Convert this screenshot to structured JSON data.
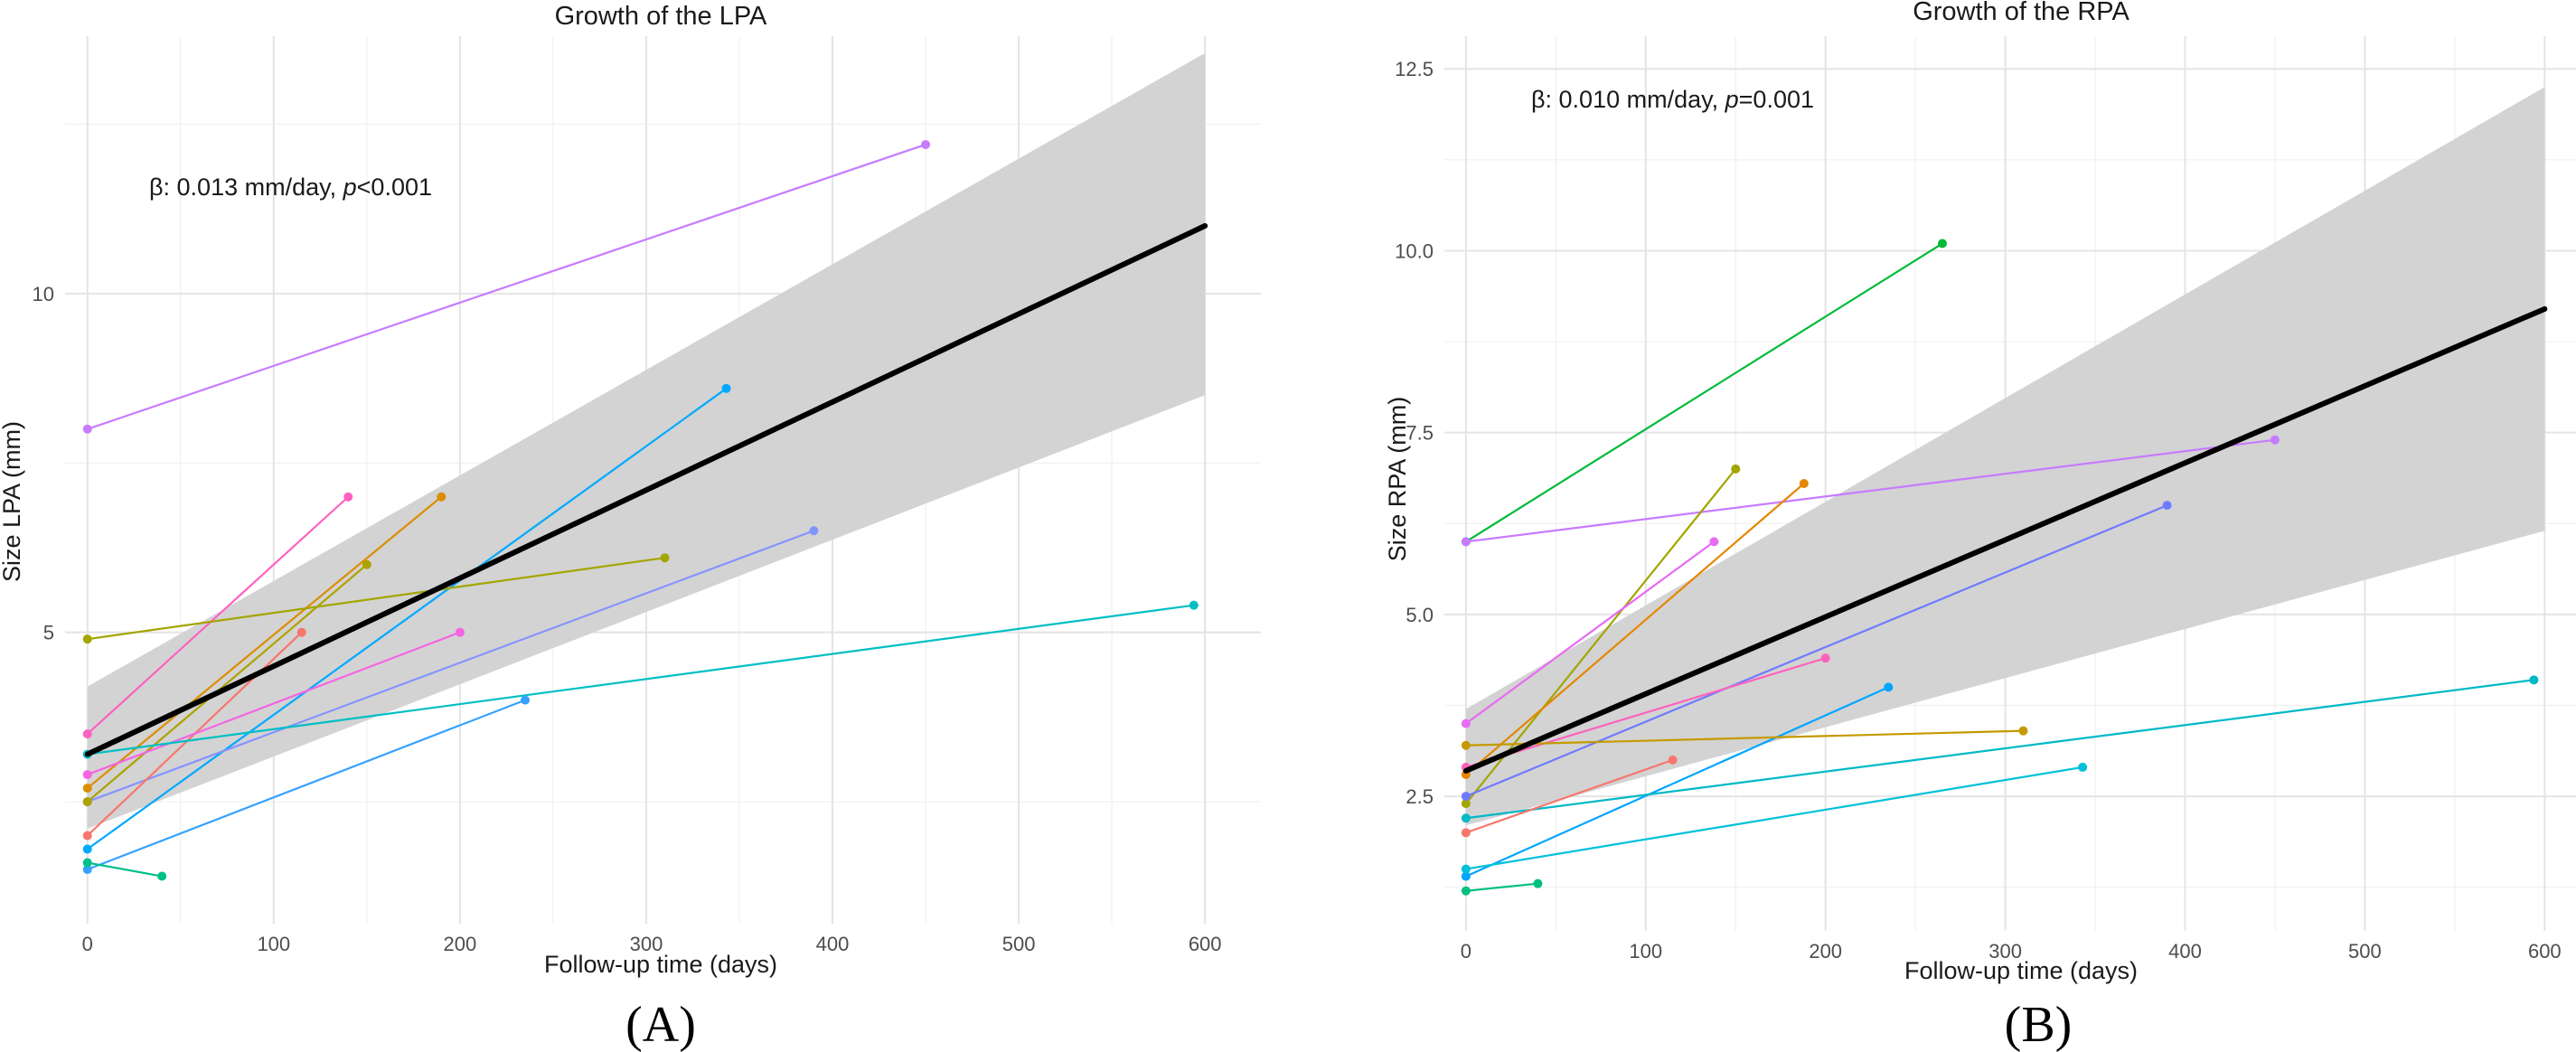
{
  "chart_data": [
    {
      "type": "line",
      "panel_label": "(A)",
      "title": "Growth of the LPA",
      "xlabel": "Follow-up time (days)",
      "ylabel": "Size LPA (mm)",
      "annotation": {
        "beta": "β: 0.013 mm/day, ",
        "p_symbol": "p",
        "p_value": "<0.001"
      },
      "xlim": [
        -12,
        630
      ],
      "ylim": [
        0.7,
        13.8
      ],
      "x_ticks": [
        0,
        100,
        200,
        300,
        400,
        500,
        600
      ],
      "y_ticks": [
        5,
        10
      ],
      "grid": true,
      "regression": {
        "x": [
          0,
          600
        ],
        "y": [
          3.2,
          11.0
        ],
        "band_lower": [
          2.1,
          8.5
        ],
        "band_upper": [
          4.2,
          13.55
        ]
      },
      "patients": [
        {
          "color": "#C77CFF",
          "x": [
            0,
            450
          ],
          "y": [
            8.0,
            12.2
          ]
        },
        {
          "color": "#FF61C3",
          "x": [
            0,
            140
          ],
          "y": [
            3.5,
            7.0
          ]
        },
        {
          "color": "#DB8E00",
          "x": [
            0,
            190
          ],
          "y": [
            2.7,
            7.0
          ]
        },
        {
          "color": "#00A9FF",
          "x": [
            0,
            343
          ],
          "y": [
            1.8,
            8.6
          ]
        },
        {
          "color": "#8494FF",
          "x": [
            0,
            390
          ],
          "y": [
            2.5,
            6.5
          ]
        },
        {
          "color": "#AEA200",
          "x": [
            0,
            150
          ],
          "y": [
            2.5,
            6.0
          ]
        },
        {
          "color": "#A3A500",
          "x": [
            0,
            310
          ],
          "y": [
            4.9,
            6.1
          ]
        },
        {
          "color": "#F8766D",
          "x": [
            0,
            115
          ],
          "y": [
            2.0,
            5.0
          ]
        },
        {
          "color": "#F564E3",
          "x": [
            0,
            200
          ],
          "y": [
            2.9,
            5.0
          ]
        },
        {
          "color": "#00BFC4",
          "x": [
            0,
            594
          ],
          "y": [
            3.2,
            5.4
          ]
        },
        {
          "color": "#35A2FF",
          "x": [
            0,
            235
          ],
          "y": [
            1.5,
            4.0
          ]
        },
        {
          "color": "#00C08B",
          "x": [
            0,
            40
          ],
          "y": [
            1.6,
            1.4
          ]
        }
      ]
    },
    {
      "type": "line",
      "panel_label": "(B)",
      "title": "Growth of the RPA",
      "xlabel": "Follow-up time (days)",
      "ylabel": "Size RPA (mm)",
      "annotation": {
        "beta": "β: 0.010 mm/day, ",
        "p_symbol": "p",
        "p_value": "=0.001"
      },
      "xlim": [
        -12,
        630
      ],
      "ylim": [
        0.65,
        12.95
      ],
      "x_ticks": [
        0,
        100,
        200,
        300,
        400,
        500,
        600
      ],
      "y_ticks": [
        2.5,
        5.0,
        7.5,
        10.0,
        12.5
      ],
      "grid": true,
      "regression": {
        "x": [
          0,
          600
        ],
        "y": [
          2.85,
          9.2
        ],
        "band_lower": [
          2.1,
          6.15
        ],
        "band_upper": [
          3.7,
          12.25
        ]
      },
      "patients": [
        {
          "color": "#00BA38",
          "x": [
            0,
            265
          ],
          "y": [
            6.0,
            10.1
          ]
        },
        {
          "color": "#C77CFF",
          "x": [
            0,
            450
          ],
          "y": [
            6.0,
            7.4
          ]
        },
        {
          "color": "#A3A500",
          "x": [
            0,
            150
          ],
          "y": [
            2.4,
            7.0
          ]
        },
        {
          "color": "#E58700",
          "x": [
            0,
            188
          ],
          "y": [
            2.8,
            6.8
          ]
        },
        {
          "color": "#6F7BFF",
          "x": [
            0,
            390
          ],
          "y": [
            2.5,
            6.5
          ]
        },
        {
          "color": "#E76BF3",
          "x": [
            0,
            138
          ],
          "y": [
            3.5,
            6.0
          ]
        },
        {
          "color": "#FF62BC",
          "x": [
            0,
            200
          ],
          "y": [
            2.9,
            4.4
          ]
        },
        {
          "color": "#00A5FF",
          "x": [
            0,
            235
          ],
          "y": [
            1.4,
            4.0
          ]
        },
        {
          "color": "#C49A00",
          "x": [
            0,
            310
          ],
          "y": [
            3.2,
            3.4
          ]
        },
        {
          "color": "#00B9C6",
          "x": [
            0,
            594
          ],
          "y": [
            2.2,
            4.1
          ]
        },
        {
          "color": "#F8766D",
          "x": [
            0,
            115
          ],
          "y": [
            2.0,
            3.0
          ]
        },
        {
          "color": "#00C1D9",
          "x": [
            0,
            343
          ],
          "y": [
            1.5,
            2.9
          ]
        },
        {
          "color": "#00BF7D",
          "x": [
            0,
            40
          ],
          "y": [
            1.2,
            1.3
          ]
        }
      ]
    }
  ]
}
